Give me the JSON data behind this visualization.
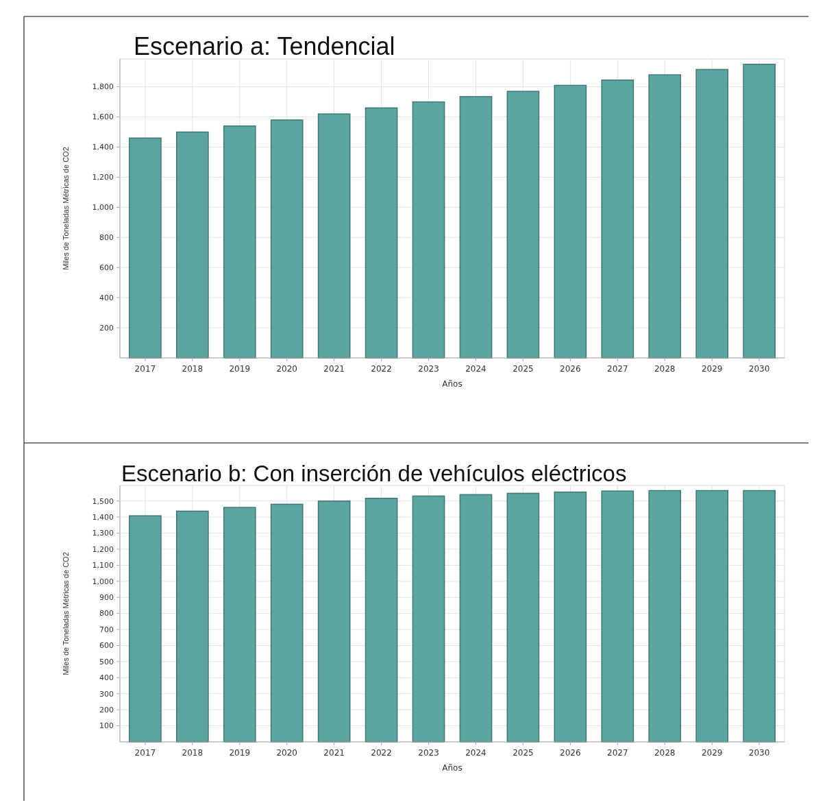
{
  "chart_data": [
    {
      "type": "bar",
      "title": "Escenario a: Tendencial",
      "xlabel": "Años",
      "ylabel": "Miles de Toneladas Métricas de CO2",
      "categories": [
        "2017",
        "2018",
        "2019",
        "2020",
        "2021",
        "2022",
        "2023",
        "2024",
        "2025",
        "2026",
        "2027",
        "2028",
        "2029",
        "2030"
      ],
      "values": [
        1460,
        1500,
        1540,
        1580,
        1620,
        1660,
        1700,
        1735,
        1770,
        1810,
        1845,
        1880,
        1915,
        1950
      ],
      "color": "#5ba5a0",
      "ylim": [
        0,
        1985
      ],
      "yticks": [
        200,
        400,
        600,
        800,
        {
          "value": 1000,
          "label": "1,000"
        },
        {
          "value": 1200,
          "label": "1,200"
        },
        {
          "value": 1400,
          "label": "1,400"
        },
        {
          "value": 1600,
          "label": "1,600"
        },
        {
          "value": 1800,
          "label": "1,800"
        }
      ],
      "grid": true
    },
    {
      "type": "bar",
      "title": "Escenario b: Con inserción de vehículos eléctricos",
      "xlabel": "Años",
      "ylabel": "Miles de Toneladas Métricas de CO2",
      "categories": [
        "2017",
        "2018",
        "2019",
        "2020",
        "2021",
        "2022",
        "2023",
        "2024",
        "2025",
        "2026",
        "2027",
        "2028",
        "2029",
        "2030"
      ],
      "values": [
        1408,
        1437,
        1460,
        1480,
        1500,
        1517,
        1531,
        1540,
        1548,
        1556,
        1562,
        1565,
        1565,
        1565
      ],
      "color": "#5ba5a0",
      "ylim": [
        0,
        1597
      ],
      "yticks": [
        100,
        200,
        300,
        400,
        500,
        600,
        700,
        800,
        900,
        {
          "value": 1000,
          "label": "1,000"
        },
        {
          "value": 1100,
          "label": "1,100"
        },
        {
          "value": 1200,
          "label": "1,200"
        },
        {
          "value": 1300,
          "label": "1,300"
        },
        {
          "value": 1400,
          "label": "1,400"
        },
        {
          "value": 1500,
          "label": "1,500"
        }
      ],
      "grid": true
    }
  ]
}
